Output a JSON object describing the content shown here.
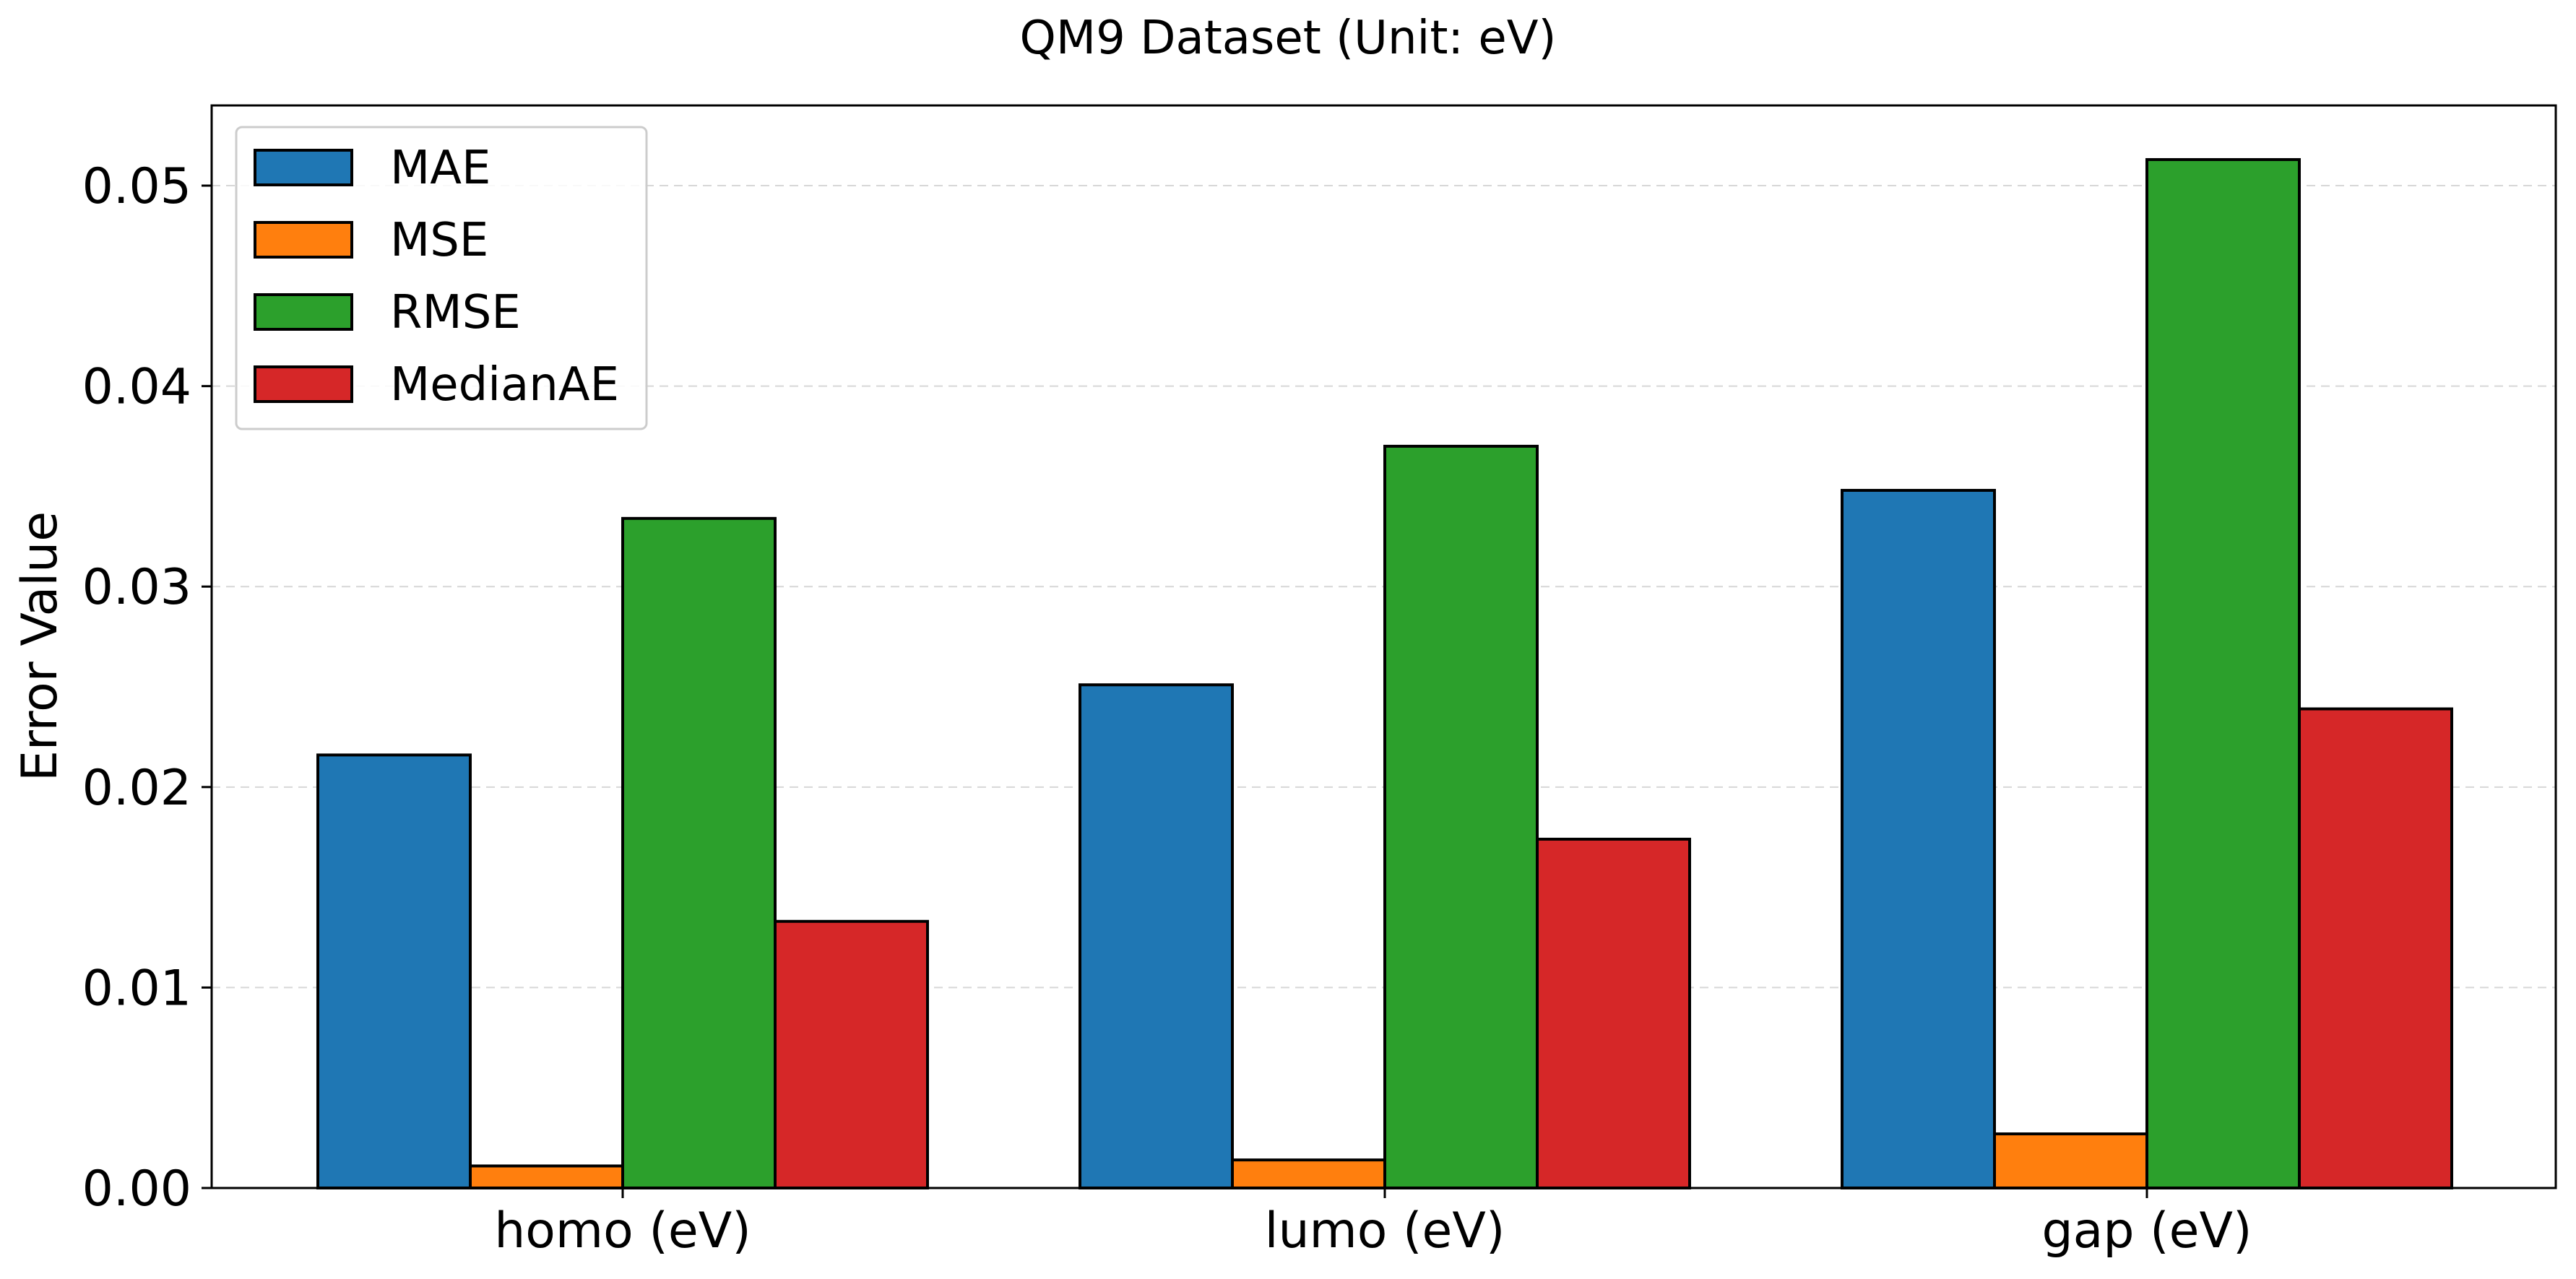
{
  "chart_data": {
    "type": "bar",
    "title": "QM9 Dataset (Unit: eV)",
    "xlabel": "",
    "ylabel": "Error Value",
    "categories": [
      "homo (eV)",
      "lumo (eV)",
      "gap (eV)"
    ],
    "series": [
      {
        "name": "MAE",
        "color": "#1f77b4",
        "values": [
          0.0216,
          0.0251,
          0.0348
        ]
      },
      {
        "name": "MSE",
        "color": "#ff7f0e",
        "values": [
          0.0011,
          0.0014,
          0.0027
        ]
      },
      {
        "name": "RMSE",
        "color": "#2ca02c",
        "values": [
          0.0334,
          0.037,
          0.0513
        ]
      },
      {
        "name": "MedianAE",
        "color": "#d62728",
        "values": [
          0.0133,
          0.0174,
          0.0239
        ]
      }
    ],
    "ylim": [
      0,
      0.054
    ],
    "yticks": [
      "0.00",
      "0.01",
      "0.02",
      "0.03",
      "0.04",
      "0.05"
    ],
    "ytick_values": [
      0,
      0.01,
      0.02,
      0.03,
      0.04,
      0.05
    ],
    "grid": "y-dashed",
    "legend_position": "top-left"
  }
}
